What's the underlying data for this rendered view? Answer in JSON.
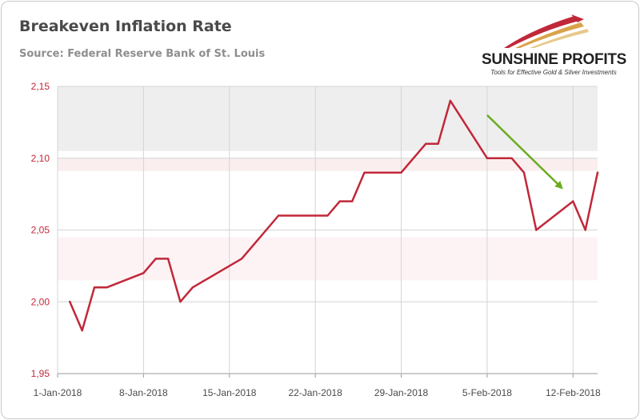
{
  "header": {
    "title": "Breakeven Inflation Rate",
    "subtitle": "Source: Federal Reserve Bank of St. Louis"
  },
  "logo": {
    "name": "SUNSHINE PROFITS",
    "tagline": "Tools for Effective Gold & Silver Investments"
  },
  "colors": {
    "series": "#c0283a",
    "axis_labels": "#c0283a",
    "arrow": "#6aac1e",
    "grid": "#d4d4d4",
    "band_top": "#eeeeee",
    "band_bottom": "#fdf3f4"
  },
  "chart_data": {
    "type": "line",
    "title": "Breakeven Inflation Rate",
    "subtitle": "Source: Federal Reserve Bank of St. Louis",
    "xlabel": "",
    "ylabel": "",
    "x_range": [
      "2018-01-01",
      "2018-02-14"
    ],
    "ylim": [
      1.95,
      2.15
    ],
    "y_ticks": [
      "1,95",
      "2,00",
      "2,05",
      "2,10",
      "2,15"
    ],
    "x_ticks": [
      {
        "date": "2018-01-01",
        "label": "1-Jan-2018"
      },
      {
        "date": "2018-01-08",
        "label": "8-Jan-2018"
      },
      {
        "date": "2018-01-15",
        "label": "15-Jan-2018"
      },
      {
        "date": "2018-01-22",
        "label": "22-Jan-2018"
      },
      {
        "date": "2018-01-29",
        "label": "29-Jan-2018"
      },
      {
        "date": "2018-02-05",
        "label": "5-Feb-2018"
      },
      {
        "date": "2018-02-12",
        "label": "12-Feb-2018"
      }
    ],
    "grid": true,
    "series": [
      {
        "points": [
          {
            "x": "2018-01-02",
            "y": 2.0
          },
          {
            "x": "2018-01-03",
            "y": 1.98
          },
          {
            "x": "2018-01-04",
            "y": 2.01
          },
          {
            "x": "2018-01-05",
            "y": 2.01
          },
          {
            "x": "2018-01-08",
            "y": 2.02
          },
          {
            "x": "2018-01-09",
            "y": 2.03
          },
          {
            "x": "2018-01-10",
            "y": 2.03
          },
          {
            "x": "2018-01-11",
            "y": 2.0
          },
          {
            "x": "2018-01-12",
            "y": 2.01
          },
          {
            "x": "2018-01-16",
            "y": 2.03
          },
          {
            "x": "2018-01-17",
            "y": 2.04
          },
          {
            "x": "2018-01-18",
            "y": 2.05
          },
          {
            "x": "2018-01-19",
            "y": 2.06
          },
          {
            "x": "2018-01-22",
            "y": 2.06
          },
          {
            "x": "2018-01-23",
            "y": 2.06
          },
          {
            "x": "2018-01-24",
            "y": 2.07
          },
          {
            "x": "2018-01-25",
            "y": 2.07
          },
          {
            "x": "2018-01-26",
            "y": 2.09
          },
          {
            "x": "2018-01-29",
            "y": 2.09
          },
          {
            "x": "2018-01-30",
            "y": 2.1
          },
          {
            "x": "2018-01-31",
            "y": 2.11
          },
          {
            "x": "2018-02-01",
            "y": 2.11
          },
          {
            "x": "2018-02-02",
            "y": 2.14
          },
          {
            "x": "2018-02-05",
            "y": 2.1
          },
          {
            "x": "2018-02-06",
            "y": 2.1
          },
          {
            "x": "2018-02-07",
            "y": 2.1
          },
          {
            "x": "2018-02-08",
            "y": 2.09
          },
          {
            "x": "2018-02-09",
            "y": 2.05
          },
          {
            "x": "2018-02-12",
            "y": 2.07
          },
          {
            "x": "2018-02-13",
            "y": 2.05
          },
          {
            "x": "2018-02-14",
            "y": 2.09
          }
        ]
      }
    ],
    "annotations": [
      {
        "type": "arrow",
        "direction": "down-right",
        "from": {
          "x": "2018-02-05",
          "y": 2.13
        },
        "to": {
          "x": "2018-02-11",
          "y": 2.08
        }
      }
    ]
  }
}
